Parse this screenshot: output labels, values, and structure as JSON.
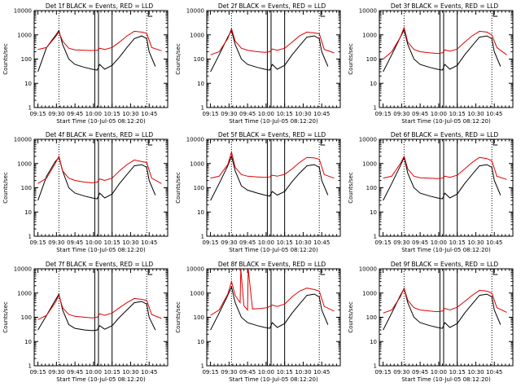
{
  "figure": {
    "ylabel": "Counts/sec",
    "xlabel": "Start Time (10-Jul-05 08:12:20)",
    "xticks": [
      "09:15",
      "09:30",
      "09:45",
      "10:00",
      "10:15",
      "10:30",
      "10:45"
    ],
    "yticks": [
      "1",
      "10",
      "100",
      "1000",
      "10000"
    ],
    "colors": {
      "events": "#000000",
      "lld": "#e00000",
      "axis": "#000000"
    }
  },
  "chart_data": [
    {
      "type": "line",
      "title": "Det 1f BLACK = Events, RED = LLD",
      "xlabel": "Start Time (10-Jul-05 08:12:20)",
      "ylabel": "Counts/sec",
      "xlim_minutes_after_0915": [
        -3,
        105
      ],
      "ylim": [
        1,
        10000
      ],
      "yscale": "log",
      "interval_lines_minutes": [
        17,
        46,
        49,
        60,
        88
      ],
      "dotted_lines_minutes": [
        17,
        88
      ],
      "series": [
        {
          "name": "BLACK",
          "x": [
            0,
            7,
            14,
            17,
            20,
            25,
            30,
            38,
            44,
            48,
            50,
            54,
            60,
            66,
            72,
            78,
            84,
            88,
            90,
            95
          ],
          "y": [
            30,
            300,
            900,
            1500,
            400,
            100,
            60,
            45,
            38,
            35,
            60,
            38,
            55,
            120,
            300,
            700,
            900,
            700,
            200,
            50
          ]
        },
        {
          "name": "RED",
          "x": [
            0,
            7,
            14,
            17,
            20,
            25,
            30,
            38,
            44,
            48,
            50,
            54,
            60,
            66,
            72,
            78,
            84,
            88,
            92,
            100
          ],
          "y": [
            250,
            300,
            800,
            1300,
            550,
            280,
            240,
            230,
            225,
            230,
            280,
            250,
            300,
            500,
            900,
            1400,
            1300,
            1150,
            300,
            220
          ]
        }
      ]
    },
    {
      "type": "line",
      "title": "Det 2f BLACK = Events, RED = LLD",
      "xlabel": "Start Time (10-Jul-05 08:12:20)",
      "ylabel": "Counts/sec",
      "xlim_minutes_after_0915": [
        -3,
        105
      ],
      "ylim": [
        1,
        10000
      ],
      "yscale": "log",
      "interval_lines_minutes": [
        17,
        46,
        49,
        60,
        88
      ],
      "dotted_lines_minutes": [
        17,
        88
      ],
      "series": [
        {
          "name": "BLACK",
          "x": [
            0,
            7,
            14,
            17,
            20,
            25,
            30,
            38,
            44,
            48,
            50,
            54,
            60,
            66,
            72,
            78,
            84,
            88,
            90,
            95
          ],
          "y": [
            30,
            150,
            800,
            1500,
            400,
            100,
            60,
            45,
            38,
            35,
            60,
            38,
            55,
            150,
            350,
            800,
            900,
            700,
            200,
            50
          ]
        },
        {
          "name": "RED",
          "x": [
            0,
            7,
            14,
            17,
            20,
            25,
            30,
            38,
            44,
            48,
            50,
            54,
            60,
            66,
            72,
            78,
            84,
            88,
            92,
            100
          ],
          "y": [
            150,
            200,
            700,
            1800,
            550,
            280,
            230,
            200,
            190,
            200,
            260,
            230,
            280,
            500,
            900,
            1300,
            1200,
            1100,
            250,
            180
          ]
        }
      ]
    },
    {
      "type": "line",
      "title": "Det 3f BLACK = Events, RED = LLD",
      "xlabel": "Start Time (10-Jul-05 08:12:20)",
      "ylabel": "Counts/sec",
      "xlim_minutes_after_0915": [
        -3,
        105
      ],
      "ylim": [
        1,
        10000
      ],
      "yscale": "log",
      "interval_lines_minutes": [
        17,
        46,
        49,
        60,
        88
      ],
      "dotted_lines_minutes": [
        17,
        88
      ],
      "series": [
        {
          "name": "BLACK",
          "x": [
            0,
            7,
            14,
            17,
            20,
            25,
            30,
            38,
            44,
            48,
            50,
            54,
            60,
            66,
            72,
            78,
            84,
            88,
            90,
            95
          ],
          "y": [
            30,
            150,
            800,
            1600,
            400,
            100,
            60,
            45,
            38,
            35,
            60,
            38,
            55,
            150,
            350,
            800,
            900,
            700,
            200,
            50
          ]
        },
        {
          "name": "RED",
          "x": [
            0,
            7,
            14,
            17,
            20,
            25,
            30,
            38,
            44,
            48,
            50,
            54,
            60,
            66,
            72,
            78,
            84,
            88,
            92,
            100
          ],
          "y": [
            100,
            200,
            800,
            2000,
            500,
            250,
            200,
            180,
            170,
            180,
            240,
            210,
            260,
            500,
            900,
            1400,
            1300,
            1000,
            300,
            150
          ]
        }
      ]
    },
    {
      "type": "line",
      "title": "Det 4f BLACK = Events, RED = LLD",
      "xlabel": "Start Time (10-Jul-05 08:12:20)",
      "ylabel": "Counts/sec",
      "xlim_minutes_after_0915": [
        -3,
        105
      ],
      "ylim": [
        1,
        10000
      ],
      "yscale": "log",
      "interval_lines_minutes": [
        17,
        46,
        49,
        60,
        88
      ],
      "dotted_lines_minutes": [
        17,
        88
      ],
      "series": [
        {
          "name": "BLACK",
          "x": [
            0,
            7,
            14,
            17,
            20,
            25,
            30,
            38,
            44,
            48,
            50,
            54,
            60,
            66,
            72,
            78,
            84,
            88,
            90,
            95
          ],
          "y": [
            30,
            300,
            1200,
            1800,
            500,
            100,
            60,
            45,
            38,
            35,
            60,
            38,
            55,
            150,
            350,
            800,
            900,
            700,
            200,
            50
          ]
        },
        {
          "name": "RED",
          "x": [
            0,
            7,
            14,
            17,
            20,
            25,
            30,
            38,
            44,
            48,
            50,
            54,
            60,
            66,
            72,
            78,
            84,
            88,
            92,
            100
          ],
          "y": [
            150,
            250,
            1000,
            2000,
            500,
            250,
            200,
            170,
            160,
            170,
            230,
            200,
            250,
            500,
            900,
            1400,
            1200,
            1100,
            250,
            150
          ]
        }
      ]
    },
    {
      "type": "line",
      "title": "Det 5f BLACK = Events, RED = LLD",
      "xlabel": "Start Time (10-Jul-05 08:12:20)",
      "ylabel": "Counts/sec",
      "xlim_minutes_after_0915": [
        -3,
        105
      ],
      "ylim": [
        1,
        10000
      ],
      "yscale": "log",
      "interval_lines_minutes": [
        17,
        46,
        49,
        60,
        88
      ],
      "dotted_lines_minutes": [
        17,
        88
      ],
      "series": [
        {
          "name": "BLACK",
          "x": [
            0,
            7,
            14,
            17,
            20,
            25,
            30,
            38,
            44,
            48,
            50,
            54,
            60,
            66,
            72,
            78,
            84,
            88,
            90,
            95
          ],
          "y": [
            30,
            150,
            800,
            2000,
            500,
            120,
            80,
            60,
            50,
            45,
            70,
            50,
            70,
            180,
            400,
            800,
            900,
            700,
            200,
            50
          ]
        },
        {
          "name": "RED",
          "x": [
            0,
            7,
            14,
            17,
            20,
            25,
            30,
            38,
            44,
            48,
            50,
            54,
            60,
            66,
            72,
            78,
            84,
            88,
            92,
            100
          ],
          "y": [
            250,
            300,
            900,
            3000,
            700,
            350,
            300,
            280,
            270,
            280,
            330,
            300,
            360,
            600,
            1100,
            1800,
            1700,
            1500,
            350,
            250
          ]
        }
      ]
    },
    {
      "type": "line",
      "title": "Det 6f BLACK = Events, RED = LLD",
      "xlabel": "Start Time (10-Jul-05 08:12:20)",
      "ylabel": "Counts/sec",
      "xlim_minutes_after_0915": [
        -3,
        105
      ],
      "ylim": [
        1,
        10000
      ],
      "yscale": "log",
      "interval_lines_minutes": [
        17,
        46,
        49,
        60,
        88
      ],
      "dotted_lines_minutes": [
        17,
        88
      ],
      "series": [
        {
          "name": "BLACK",
          "x": [
            0,
            7,
            14,
            17,
            20,
            25,
            30,
            38,
            44,
            48,
            50,
            54,
            60,
            66,
            72,
            78,
            84,
            88,
            90,
            95
          ],
          "y": [
            30,
            150,
            800,
            1800,
            400,
            100,
            60,
            45,
            38,
            35,
            60,
            38,
            55,
            150,
            350,
            800,
            900,
            700,
            200,
            50
          ]
        },
        {
          "name": "RED",
          "x": [
            0,
            7,
            14,
            17,
            20,
            25,
            30,
            38,
            44,
            48,
            50,
            54,
            60,
            66,
            72,
            78,
            84,
            88,
            92,
            100
          ],
          "y": [
            250,
            300,
            1000,
            2000,
            600,
            300,
            260,
            250,
            240,
            250,
            300,
            270,
            330,
            600,
            1100,
            1800,
            1600,
            1300,
            300,
            220
          ]
        }
      ]
    },
    {
      "type": "line",
      "title": "Det 7f BLACK = Events, RED = LLD",
      "xlabel": "Start Time (10-Jul-05 08:12:20)",
      "ylabel": "Counts/sec",
      "xlim_minutes_after_0915": [
        -3,
        105
      ],
      "ylim": [
        1,
        10000
      ],
      "yscale": "log",
      "interval_lines_minutes": [
        17,
        46,
        49,
        60,
        88
      ],
      "dotted_lines_minutes": [
        17,
        88
      ],
      "series": [
        {
          "name": "BLACK",
          "x": [
            0,
            7,
            14,
            17,
            20,
            25,
            30,
            38,
            44,
            48,
            50,
            54,
            60,
            66,
            72,
            78,
            84,
            88,
            90,
            95
          ],
          "y": [
            30,
            120,
            500,
            900,
            200,
            50,
            35,
            30,
            28,
            30,
            45,
            32,
            45,
            100,
            200,
            400,
            450,
            350,
            100,
            30
          ]
        },
        {
          "name": "RED",
          "x": [
            0,
            7,
            14,
            17,
            20,
            25,
            30,
            38,
            44,
            48,
            50,
            54,
            60,
            66,
            72,
            78,
            84,
            88,
            92,
            100
          ],
          "y": [
            80,
            120,
            400,
            800,
            250,
            130,
            110,
            100,
            95,
            100,
            140,
            120,
            150,
            250,
            400,
            600,
            550,
            500,
            130,
            90
          ]
        }
      ]
    },
    {
      "type": "line",
      "title": "Det 8f BLACK = Events, RED = LLD",
      "xlabel": "Start Time (10-Jul-05 08:12:20)",
      "ylabel": "Counts/sec",
      "xlim_minutes_after_0915": [
        -3,
        105
      ],
      "ylim": [
        1,
        10000
      ],
      "yscale": "log",
      "interval_lines_minutes": [
        17,
        46,
        49,
        60,
        88
      ],
      "dotted_lines_minutes": [
        17,
        88
      ],
      "series": [
        {
          "name": "BLACK",
          "x": [
            0,
            7,
            14,
            17,
            20,
            25,
            30,
            38,
            44,
            48,
            50,
            54,
            60,
            66,
            72,
            78,
            84,
            88,
            90,
            95
          ],
          "y": [
            30,
            150,
            800,
            1800,
            400,
            100,
            60,
            45,
            38,
            35,
            60,
            38,
            55,
            150,
            350,
            800,
            900,
            700,
            200,
            50
          ]
        },
        {
          "name": "RED",
          "x": [
            0,
            7,
            14,
            17,
            20,
            24,
            24.5,
            27,
            30,
            30.5,
            34,
            40,
            46,
            50,
            54,
            60,
            66,
            72,
            78,
            84,
            88,
            92,
            100
          ],
          "y": [
            120,
            200,
            900,
            3000,
            800,
            400,
            10000,
            300,
            200,
            10000,
            220,
            230,
            250,
            320,
            280,
            350,
            700,
            1200,
            1600,
            1400,
            1200,
            280,
            180
          ]
        }
      ]
    },
    {
      "type": "line",
      "title": "Det 9f BLACK = Events, RED = LLD",
      "xlabel": "Start Time (10-Jul-05 08:12:20)",
      "ylabel": "Counts/sec",
      "xlim_minutes_after_0915": [
        -3,
        105
      ],
      "ylim": [
        1,
        10000
      ],
      "yscale": "log",
      "interval_lines_minutes": [
        17,
        46,
        49,
        60,
        88
      ],
      "dotted_lines_minutes": [
        17,
        88
      ],
      "series": [
        {
          "name": "BLACK",
          "x": [
            0,
            7,
            14,
            17,
            20,
            25,
            30,
            38,
            44,
            48,
            50,
            54,
            60,
            66,
            72,
            78,
            84,
            88,
            90,
            95
          ],
          "y": [
            30,
            150,
            800,
            1500,
            400,
            100,
            60,
            45,
            38,
            35,
            60,
            38,
            55,
            150,
            350,
            800,
            900,
            700,
            200,
            50
          ]
        },
        {
          "name": "RED",
          "x": [
            0,
            7,
            14,
            17,
            20,
            25,
            30,
            38,
            44,
            48,
            50,
            54,
            60,
            66,
            72,
            78,
            84,
            88,
            92,
            100
          ],
          "y": [
            150,
            200,
            700,
            1600,
            500,
            250,
            200,
            180,
            170,
            180,
            230,
            200,
            260,
            450,
            800,
            1300,
            1200,
            1000,
            250,
            160
          ]
        }
      ]
    }
  ]
}
